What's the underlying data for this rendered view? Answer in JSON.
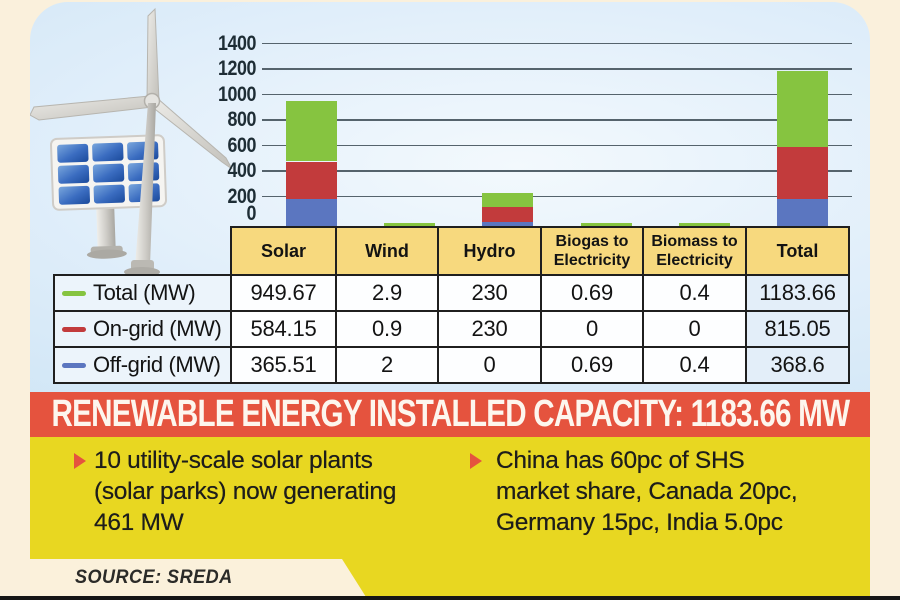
{
  "colors": {
    "background_cream": "#faf0dc",
    "panel_blue": "#d9ecf9",
    "header_tan": "#f7d97e",
    "banner_red": "#e5533e",
    "section_yellow": "#e8d721",
    "series_total_green": "#86c440",
    "series_ongrid_red": "#c23b3c",
    "series_offgrid_blue": "#5b76c0",
    "gridline": "#55636c",
    "bottom_strip": "#151515"
  },
  "chart_data": {
    "type": "bar",
    "stacked": true,
    "title": "",
    "xlabel": "",
    "ylabel": "",
    "ylim": [
      0,
      1400
    ],
    "yticks": [
      0,
      200,
      400,
      600,
      800,
      1000,
      1200,
      1400
    ],
    "grid": true,
    "legend_position": "table-left-column",
    "categories": [
      "Solar",
      "Wind",
      "Hydro",
      "Biogas to Electricity",
      "Biomass to Electricity",
      "Total"
    ],
    "series": [
      {
        "name": "Total (MW)",
        "color": "#86c440",
        "values": [
          949.67,
          2.9,
          230,
          0.69,
          0.4,
          1183.66
        ]
      },
      {
        "name": "On-grid (MW)",
        "color": "#c23b3c",
        "values": [
          584.15,
          0.9,
          230,
          0,
          0,
          815.05
        ]
      },
      {
        "name": "Off-grid (MW)",
        "color": "#5b76c0",
        "values": [
          365.51,
          2,
          0,
          0.69,
          0.4,
          368.6
        ]
      }
    ]
  },
  "table": {
    "columns": [
      "Solar",
      "Wind",
      "Hydro",
      "Biogas to Electricity",
      "Biomass to Electricity",
      "Total"
    ],
    "rows": [
      {
        "label": "Total (MW)",
        "dash_color": "#86c440",
        "values": [
          "949.67",
          "2.9",
          "230",
          "0.69",
          "0.4",
          "1183.66"
        ]
      },
      {
        "label": "On-grid (MW)",
        "dash_color": "#c23b3c",
        "values": [
          "584.15",
          "0.9",
          "230",
          "0",
          "0",
          "815.05"
        ]
      },
      {
        "label": "Off-grid (MW)",
        "dash_color": "#5b76c0",
        "values": [
          "365.51",
          "2",
          "0",
          "0.69",
          "0.4",
          "368.6"
        ]
      }
    ]
  },
  "banner": {
    "text": "RENEWABLE ENERGY INSTALLED CAPACITY: 1183.66 MW"
  },
  "highlights": [
    {
      "lines": [
        "10 utility-scale solar plants",
        "(solar parks) now generating",
        "461 MW"
      ]
    },
    {
      "lines": [
        "China has 60pc of SHS",
        "market share, Canada 20pc,",
        "Germany 15pc, India 5.0pc"
      ]
    }
  ],
  "source": {
    "label": "SOURCE: SREDA"
  },
  "illustration": {
    "icons": [
      "wind-turbine-icon",
      "solar-panel-icon"
    ]
  }
}
